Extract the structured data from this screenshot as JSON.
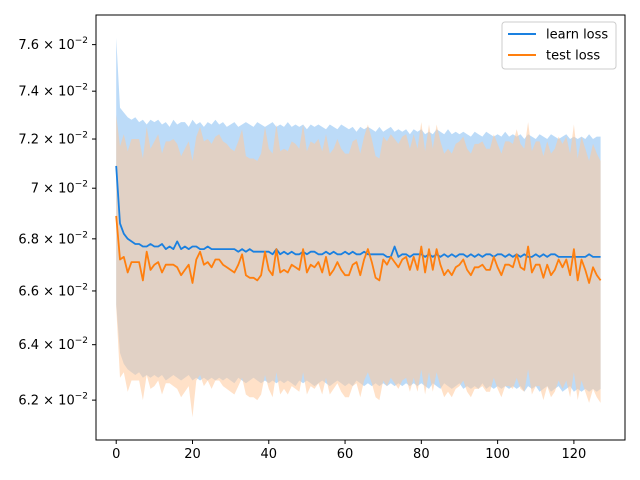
{
  "chart_data": {
    "type": "line",
    "title": "",
    "xlabel": "",
    "ylabel": "",
    "yscale": "log",
    "xlim": [
      -5.3,
      133.4
    ],
    "ylim": [
      0.0606,
      0.0773
    ],
    "xticks": [
      0,
      20,
      40,
      60,
      80,
      100,
      120
    ],
    "yticks": [
      {
        "value": 0.062,
        "mantissa": "6.2"
      },
      {
        "value": 0.064,
        "mantissa": "6.4"
      },
      {
        "value": 0.066,
        "mantissa": "6.6"
      },
      {
        "value": 0.068,
        "mantissa": "6.8"
      },
      {
        "value": 0.07,
        "mantissa": "7"
      },
      {
        "value": 0.072,
        "mantissa": "7.2"
      },
      {
        "value": 0.074,
        "mantissa": "7.4"
      },
      {
        "value": 0.076,
        "mantissa": "7.6"
      }
    ],
    "ytick_format": "× 10^−2",
    "grid": false,
    "legend_position": "upper right",
    "series": [
      {
        "name": "learn loss",
        "color": "#1f77b4",
        "line_color": "#1a80e0",
        "band_color": "#a6cff5",
        "x_start": 0,
        "x_end": 127,
        "values": [
          0.0709,
          0.0686,
          0.0682,
          0.068,
          0.0679,
          0.0678,
          0.0678,
          0.0677,
          0.0677,
          0.0678,
          0.0677,
          0.0677,
          0.0678,
          0.0676,
          0.0677,
          0.0676,
          0.0679,
          0.0676,
          0.0677,
          0.0676,
          0.0677,
          0.0677,
          0.0676,
          0.0676,
          0.0677,
          0.0676,
          0.0676,
          0.0676,
          0.0676,
          0.0676,
          0.0676,
          0.0676,
          0.0675,
          0.0676,
          0.0675,
          0.0676,
          0.0675,
          0.0675,
          0.0675,
          0.0675,
          0.0675,
          0.0674,
          0.0676,
          0.0674,
          0.0675,
          0.0674,
          0.0675,
          0.0674,
          0.0674,
          0.0675,
          0.0674,
          0.0675,
          0.0675,
          0.0674,
          0.0674,
          0.0675,
          0.0674,
          0.0675,
          0.0674,
          0.0674,
          0.0675,
          0.0674,
          0.0675,
          0.0674,
          0.0674,
          0.0675,
          0.0674,
          0.0674,
          0.0674,
          0.0674,
          0.0674,
          0.0673,
          0.0673,
          0.0677,
          0.0673,
          0.0674,
          0.0674,
          0.0673,
          0.0674,
          0.0674,
          0.0674,
          0.0673,
          0.0674,
          0.0673,
          0.0674,
          0.0673,
          0.0674,
          0.0673,
          0.0674,
          0.0673,
          0.0674,
          0.0674,
          0.0673,
          0.0674,
          0.0673,
          0.0674,
          0.0673,
          0.0674,
          0.0674,
          0.0673,
          0.0674,
          0.0674,
          0.0673,
          0.0674,
          0.0673,
          0.0674,
          0.0673,
          0.0674,
          0.0673,
          0.0673,
          0.0674,
          0.0673,
          0.0674,
          0.0673,
          0.0674,
          0.0674,
          0.0673,
          0.0673,
          0.0673,
          0.0673,
          0.0673,
          0.0673,
          0.0673,
          0.0673,
          0.0674,
          0.0673,
          0.0673,
          0.0673
        ],
        "upper": [
          0.0763,
          0.0733,
          0.0731,
          0.0729,
          0.0728,
          0.0729,
          0.0727,
          0.0728,
          0.0726,
          0.0728,
          0.0727,
          0.0728,
          0.0726,
          0.0727,
          0.0725,
          0.0728,
          0.0726,
          0.0727,
          0.0727,
          0.0725,
          0.0728,
          0.0726,
          0.0727,
          0.0725,
          0.0727,
          0.0726,
          0.0728,
          0.0726,
          0.0727,
          0.0725,
          0.0726,
          0.0727,
          0.0725,
          0.0726,
          0.0727,
          0.0726,
          0.0725,
          0.0727,
          0.0726,
          0.0725,
          0.0726,
          0.0727,
          0.0725,
          0.0726,
          0.0725,
          0.0727,
          0.0725,
          0.0726,
          0.0725,
          0.0726,
          0.0724,
          0.0726,
          0.0725,
          0.0726,
          0.0725,
          0.0724,
          0.0726,
          0.0725,
          0.0724,
          0.0726,
          0.0725,
          0.0724,
          0.0725,
          0.0723,
          0.0725,
          0.0724,
          0.0725,
          0.0724,
          0.0723,
          0.0725,
          0.0723,
          0.0724,
          0.0725,
          0.0723,
          0.0724,
          0.0723,
          0.0724,
          0.0722,
          0.0724,
          0.0723,
          0.0724,
          0.0722,
          0.0723,
          0.0722,
          0.0724,
          0.0723,
          0.0722,
          0.0724,
          0.0722,
          0.0723,
          0.0722,
          0.0723,
          0.0722,
          0.0721,
          0.0723,
          0.0722,
          0.0721,
          0.0723,
          0.0722,
          0.0721,
          0.0722,
          0.0721,
          0.0723,
          0.0721,
          0.0722,
          0.0721,
          0.0722,
          0.072,
          0.0722,
          0.0721,
          0.072,
          0.0722,
          0.0721,
          0.072,
          0.0722,
          0.0721,
          0.072,
          0.0721,
          0.0722,
          0.072,
          0.0721,
          0.072,
          0.0721,
          0.072,
          0.0722,
          0.072,
          0.0721,
          0.0721
        ],
        "lower": [
          0.0655,
          0.0637,
          0.0633,
          0.0631,
          0.063,
          0.0629,
          0.063,
          0.0628,
          0.0629,
          0.0628,
          0.0629,
          0.0628,
          0.0629,
          0.0627,
          0.0628,
          0.0629,
          0.0628,
          0.0627,
          0.0628,
          0.0629,
          0.0627,
          0.0628,
          0.0627,
          0.0628,
          0.0627,
          0.0628,
          0.0627,
          0.0628,
          0.0627,
          0.0628,
          0.0627,
          0.0626,
          0.0628,
          0.0627,
          0.0626,
          0.0627,
          0.0628,
          0.0627,
          0.0626,
          0.0627,
          0.0626,
          0.0627,
          0.0626,
          0.0627,
          0.0626,
          0.0627,
          0.0626,
          0.0625,
          0.0627,
          0.0626,
          0.0627,
          0.0626,
          0.0625,
          0.0626,
          0.0627,
          0.0626,
          0.0625,
          0.0626,
          0.0627,
          0.0626,
          0.0625,
          0.0626,
          0.0625,
          0.0627,
          0.0626,
          0.0625,
          0.0626,
          0.0625,
          0.0626,
          0.0625,
          0.0626,
          0.0625,
          0.0626,
          0.0625,
          0.0626,
          0.0625,
          0.0626,
          0.0625,
          0.0626,
          0.0625,
          0.0626,
          0.0625,
          0.0624,
          0.0626,
          0.0625,
          0.0624,
          0.0626,
          0.0625,
          0.0624,
          0.0625,
          0.0626,
          0.0624,
          0.0625,
          0.0624,
          0.0625,
          0.0624,
          0.0626,
          0.0624,
          0.0625,
          0.0624,
          0.0625,
          0.0624,
          0.0625,
          0.0624,
          0.0625,
          0.0624,
          0.0625,
          0.0623,
          0.0625,
          0.0624,
          0.0625,
          0.0623,
          0.0624,
          0.0625,
          0.0623,
          0.0624,
          0.0625,
          0.0623,
          0.0624,
          0.0625,
          0.0623,
          0.0624,
          0.0623,
          0.0624,
          0.0623,
          0.0624,
          0.0623,
          0.0624
        ]
      },
      {
        "name": "test loss",
        "color": "#ff7f0e",
        "line_color": "#ff7f0e",
        "band_color": "#ffc89a",
        "x_start": 0,
        "x_end": 127,
        "values": [
          0.0689,
          0.0672,
          0.0673,
          0.0667,
          0.0671,
          0.0671,
          0.0671,
          0.0664,
          0.0675,
          0.0668,
          0.067,
          0.0671,
          0.0667,
          0.067,
          0.067,
          0.067,
          0.0669,
          0.0666,
          0.0668,
          0.067,
          0.0663,
          0.0672,
          0.0675,
          0.067,
          0.0671,
          0.0669,
          0.0672,
          0.0672,
          0.067,
          0.0669,
          0.0668,
          0.0667,
          0.067,
          0.0674,
          0.0666,
          0.0665,
          0.0665,
          0.0664,
          0.0666,
          0.0675,
          0.0668,
          0.0666,
          0.0676,
          0.0667,
          0.0668,
          0.0667,
          0.067,
          0.0669,
          0.0668,
          0.0676,
          0.0667,
          0.067,
          0.0669,
          0.0671,
          0.0667,
          0.0673,
          0.0666,
          0.0668,
          0.0671,
          0.0668,
          0.0666,
          0.0666,
          0.067,
          0.0671,
          0.0666,
          0.0672,
          0.0676,
          0.0671,
          0.0665,
          0.0664,
          0.0672,
          0.067,
          0.0673,
          0.0671,
          0.0669,
          0.0672,
          0.0673,
          0.0668,
          0.0673,
          0.0668,
          0.0677,
          0.0667,
          0.0676,
          0.0668,
          0.0676,
          0.067,
          0.0666,
          0.0668,
          0.0666,
          0.0669,
          0.067,
          0.0672,
          0.0668,
          0.0666,
          0.0669,
          0.0669,
          0.067,
          0.0668,
          0.0668,
          0.0673,
          0.0669,
          0.0666,
          0.067,
          0.067,
          0.0669,
          0.0674,
          0.0669,
          0.0668,
          0.0677,
          0.0667,
          0.067,
          0.067,
          0.0665,
          0.067,
          0.0666,
          0.0668,
          0.0672,
          0.0669,
          0.0672,
          0.0666,
          0.0676,
          0.0664,
          0.0672,
          0.0668,
          0.0663,
          0.0669,
          0.0666,
          0.0664
        ],
        "upper": [
          0.073,
          0.0717,
          0.0722,
          0.0715,
          0.072,
          0.072,
          0.072,
          0.0712,
          0.0725,
          0.0716,
          0.0719,
          0.0722,
          0.0714,
          0.0719,
          0.0719,
          0.072,
          0.0718,
          0.0713,
          0.0716,
          0.0719,
          0.0711,
          0.0721,
          0.0725,
          0.0719,
          0.072,
          0.0718,
          0.0721,
          0.0722,
          0.0719,
          0.0718,
          0.0716,
          0.0715,
          0.0719,
          0.0724,
          0.0713,
          0.0712,
          0.0712,
          0.0711,
          0.0714,
          0.0725,
          0.0716,
          0.0714,
          0.0726,
          0.0715,
          0.0716,
          0.0715,
          0.0719,
          0.0718,
          0.0716,
          0.0726,
          0.0715,
          0.0719,
          0.0718,
          0.072,
          0.0715,
          0.0722,
          0.0714,
          0.0716,
          0.072,
          0.0716,
          0.0714,
          0.0714,
          0.0719,
          0.072,
          0.0714,
          0.0721,
          0.0726,
          0.072,
          0.0713,
          0.0712,
          0.0721,
          0.0719,
          0.0722,
          0.072,
          0.0718,
          0.0721,
          0.0722,
          0.0716,
          0.0722,
          0.0716,
          0.0727,
          0.0715,
          0.0726,
          0.0716,
          0.0726,
          0.0719,
          0.0714,
          0.0716,
          0.0714,
          0.0718,
          0.0719,
          0.0721,
          0.0716,
          0.0714,
          0.0718,
          0.0718,
          0.0719,
          0.0716,
          0.0716,
          0.0722,
          0.0718,
          0.0714,
          0.0719,
          0.0719,
          0.0718,
          0.0724,
          0.0718,
          0.0716,
          0.0727,
          0.0715,
          0.0719,
          0.0719,
          0.0713,
          0.0719,
          0.0714,
          0.0716,
          0.0721,
          0.0718,
          0.0721,
          0.0714,
          0.0726,
          0.0712,
          0.0721,
          0.0716,
          0.0711,
          0.0718,
          0.0714,
          0.0711
        ],
        "lower": [
          0.0654,
          0.0628,
          0.063,
          0.0623,
          0.0627,
          0.0627,
          0.0627,
          0.062,
          0.0629,
          0.0624,
          0.0625,
          0.0627,
          0.0622,
          0.0626,
          0.0626,
          0.0625,
          0.0624,
          0.0621,
          0.0623,
          0.0625,
          0.0614,
          0.0627,
          0.0629,
          0.0625,
          0.0627,
          0.0624,
          0.0627,
          0.0627,
          0.0625,
          0.0624,
          0.0623,
          0.0622,
          0.0625,
          0.0628,
          0.0622,
          0.0621,
          0.0621,
          0.062,
          0.0622,
          0.0629,
          0.0624,
          0.0621,
          0.063,
          0.0622,
          0.0624,
          0.0622,
          0.0625,
          0.0624,
          0.0623,
          0.063,
          0.0622,
          0.0625,
          0.0624,
          0.0626,
          0.0622,
          0.0628,
          0.0622,
          0.0624,
          0.0626,
          0.0623,
          0.0621,
          0.0621,
          0.0625,
          0.0626,
          0.0621,
          0.0627,
          0.063,
          0.0626,
          0.0621,
          0.062,
          0.0627,
          0.0625,
          0.0628,
          0.0626,
          0.0624,
          0.0627,
          0.0628,
          0.0623,
          0.0628,
          0.0623,
          0.0631,
          0.0622,
          0.063,
          0.0623,
          0.063,
          0.0625,
          0.0621,
          0.0623,
          0.0621,
          0.0624,
          0.0625,
          0.0627,
          0.0623,
          0.0621,
          0.0624,
          0.0624,
          0.0625,
          0.0623,
          0.0623,
          0.0628,
          0.0624,
          0.0621,
          0.0625,
          0.0625,
          0.0624,
          0.0628,
          0.0624,
          0.0623,
          0.0631,
          0.0622,
          0.0625,
          0.0625,
          0.062,
          0.0625,
          0.0621,
          0.0623,
          0.0627,
          0.0624,
          0.0627,
          0.0621,
          0.063,
          0.062,
          0.0627,
          0.0623,
          0.0619,
          0.0624,
          0.0621,
          0.0619
        ]
      }
    ]
  }
}
